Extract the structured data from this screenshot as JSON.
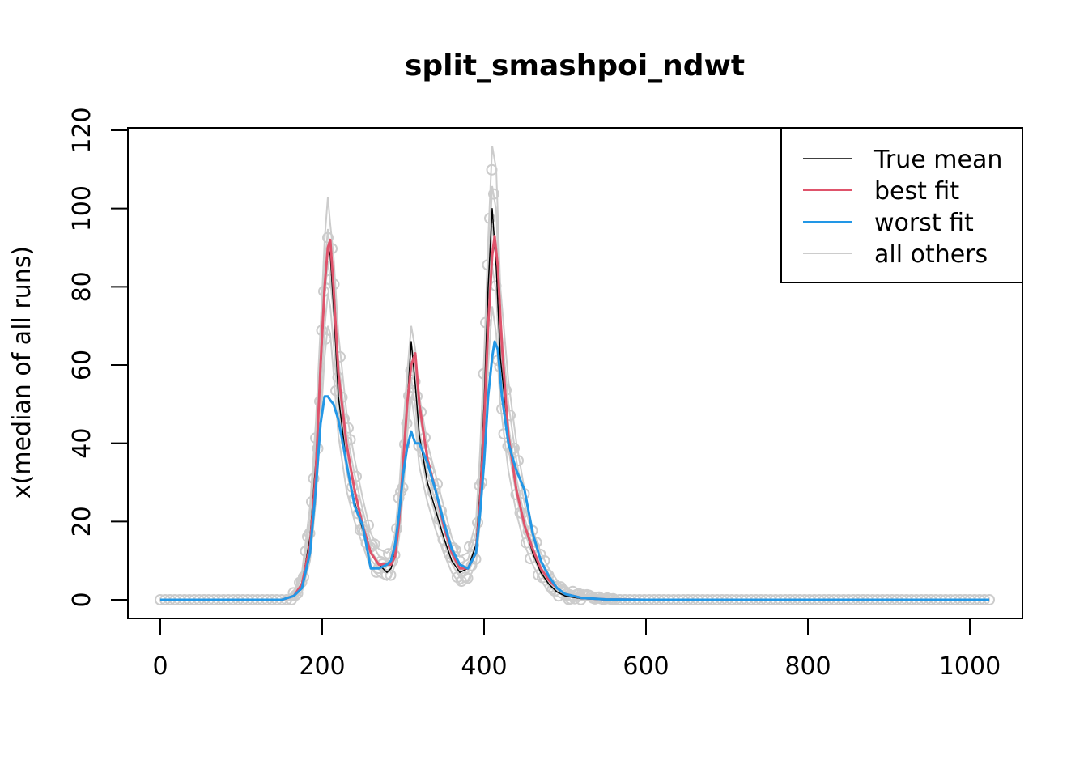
{
  "chart_data": {
    "type": "line",
    "title": "split_smashpoi_ndwt",
    "xlabel": "",
    "ylabel": "x(median of all runs)",
    "xlim": [
      0,
      1024
    ],
    "ylim": [
      0,
      120
    ],
    "x_ticks": [
      0,
      200,
      400,
      600,
      800,
      1000
    ],
    "y_ticks": [
      0,
      20,
      40,
      60,
      80,
      100,
      120
    ],
    "grid": false,
    "legend_position": "top-right",
    "legend": [
      {
        "label": "True mean",
        "color": "#000000"
      },
      {
        "label": "best fit",
        "color": "#DF536B"
      },
      {
        "label": "worst fit",
        "color": "#2297E6"
      },
      {
        "label": "all others",
        "color": "#CCCCCC"
      }
    ],
    "series": [
      {
        "name": "True mean",
        "color": "#000000",
        "x": [
          0,
          150,
          165,
          175,
          185,
          192,
          198,
          203,
          207,
          210,
          214,
          220,
          230,
          240,
          250,
          260,
          270,
          280,
          285,
          290,
          295,
          300,
          305,
          310,
          315,
          320,
          330,
          340,
          350,
          360,
          370,
          380,
          390,
          395,
          400,
          405,
          410,
          415,
          420,
          430,
          440,
          450,
          460,
          470,
          480,
          490,
          500,
          520,
          550,
          600,
          1024
        ],
        "y": [
          0,
          0,
          1,
          4,
          16,
          35,
          58,
          78,
          90,
          88,
          75,
          52,
          35,
          25,
          18,
          12,
          9,
          7,
          8,
          12,
          22,
          35,
          50,
          66,
          55,
          42,
          30,
          23,
          16,
          10,
          7,
          8,
          14,
          28,
          50,
          80,
          100,
          85,
          62,
          42,
          28,
          19,
          12,
          7,
          4,
          2,
          1,
          0.3,
          0,
          0,
          0
        ]
      },
      {
        "name": "best fit",
        "color": "#DF536B",
        "x": [
          0,
          150,
          165,
          175,
          185,
          192,
          198,
          203,
          207,
          210,
          214,
          220,
          230,
          240,
          250,
          260,
          270,
          280,
          285,
          290,
          295,
          300,
          305,
          310,
          315,
          320,
          330,
          340,
          350,
          360,
          370,
          380,
          390,
          395,
          400,
          405,
          410,
          413,
          417,
          422,
          430,
          440,
          450,
          460,
          470,
          480,
          490,
          500,
          520,
          550,
          600,
          1024
        ],
        "y": [
          0,
          0,
          1,
          4,
          14,
          32,
          60,
          80,
          90,
          92,
          80,
          58,
          40,
          28,
          19,
          12,
          9,
          9,
          9,
          11,
          20,
          35,
          50,
          60,
          63,
          50,
          36,
          28,
          19,
          12,
          8,
          8,
          12,
          25,
          45,
          70,
          88,
          93,
          85,
          65,
          42,
          28,
          19,
          13,
          8,
          5,
          3,
          1.5,
          0.5,
          0.1,
          0,
          0
        ]
      },
      {
        "name": "worst fit",
        "color": "#2297E6",
        "x": [
          0,
          150,
          165,
          175,
          185,
          192,
          198,
          203,
          207,
          210,
          214,
          220,
          230,
          240,
          250,
          260,
          270,
          280,
          285,
          290,
          295,
          300,
          305,
          310,
          315,
          320,
          330,
          340,
          350,
          360,
          370,
          380,
          390,
          395,
          400,
          405,
          410,
          413,
          417,
          422,
          430,
          440,
          450,
          460,
          470,
          480,
          490,
          500,
          520,
          550,
          600,
          1024
        ],
        "y": [
          0,
          0,
          1,
          3,
          12,
          28,
          45,
          52,
          52,
          51,
          50,
          46,
          35,
          24,
          19,
          8,
          8,
          9,
          10,
          14,
          22,
          32,
          39,
          43,
          40,
          40,
          35,
          28,
          20,
          13,
          9,
          8,
          12,
          22,
          35,
          52,
          62,
          66,
          64,
          52,
          40,
          33,
          28,
          17,
          10,
          6,
          3,
          1.5,
          0.5,
          0.1,
          0,
          0
        ]
      }
    ],
    "others_band": {
      "name": "all others",
      "color": "#CCCCCC",
      "x": [
        0,
        150,
        165,
        175,
        185,
        192,
        198,
        203,
        207,
        210,
        214,
        220,
        230,
        240,
        250,
        260,
        270,
        280,
        285,
        290,
        295,
        300,
        305,
        310,
        315,
        320,
        330,
        340,
        350,
        360,
        370,
        380,
        390,
        395,
        400,
        405,
        410,
        415,
        420,
        430,
        440,
        450,
        460,
        470,
        480,
        490,
        500,
        520,
        550,
        600,
        1024
      ],
      "lower": [
        0,
        0,
        0,
        2,
        10,
        25,
        45,
        62,
        70,
        68,
        58,
        42,
        28,
        20,
        14,
        8,
        6,
        5,
        6,
        9,
        16,
        27,
        42,
        52,
        45,
        34,
        25,
        18,
        12,
        7,
        4,
        5,
        9,
        20,
        38,
        60,
        75,
        68,
        50,
        33,
        22,
        14,
        9,
        5,
        2,
        1,
        0,
        0,
        0,
        0,
        0
      ],
      "upper": [
        0,
        0,
        2,
        7,
        24,
        45,
        70,
        92,
        103,
        96,
        88,
        68,
        48,
        36,
        26,
        17,
        13,
        12,
        13,
        17,
        28,
        44,
        58,
        70,
        64,
        52,
        40,
        32,
        24,
        16,
        11,
        12,
        20,
        38,
        62,
        92,
        116,
        110,
        80,
        56,
        40,
        28,
        18,
        12,
        8,
        5,
        3,
        1.5,
        0.5,
        0,
        0
      ]
    }
  }
}
